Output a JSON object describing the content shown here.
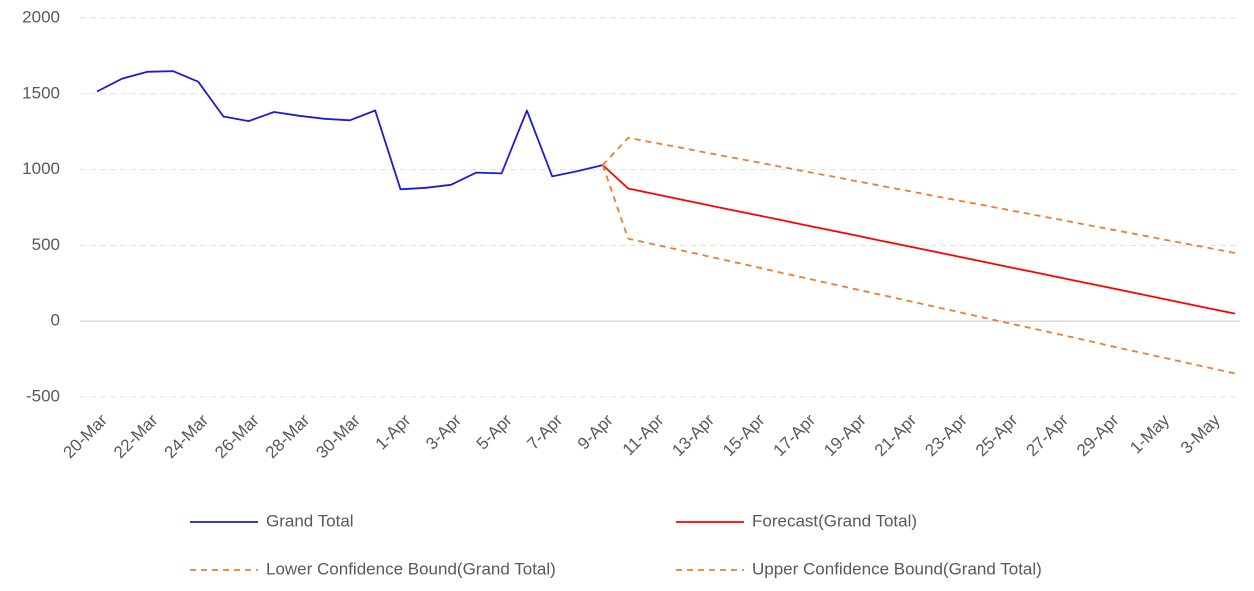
{
  "chart_data": {
    "type": "line",
    "categories": [
      "20-Mar",
      null,
      "22-Mar",
      null,
      "24-Mar",
      null,
      "26-Mar",
      null,
      "28-Mar",
      null,
      "30-Mar",
      null,
      "1-Apr",
      null,
      "3-Apr",
      null,
      "5-Apr",
      null,
      "7-Apr",
      null,
      "9-Apr",
      null,
      "11-Apr",
      null,
      "13-Apr",
      null,
      "15-Apr",
      null,
      "17-Apr",
      null,
      "19-Apr",
      null,
      "21-Apr",
      null,
      "23-Apr",
      null,
      "25-Apr",
      null,
      "27-Apr",
      null,
      "29-Apr",
      null,
      "1-May",
      null,
      "3-May",
      null
    ],
    "series": [
      {
        "name": "Grand Total",
        "color": "#1c1cd6",
        "dashed": false,
        "values": [
          1515,
          1600,
          1645,
          1650,
          1580,
          1350,
          1320,
          1380,
          1355,
          1335,
          1325,
          1390,
          870,
          880,
          900,
          980,
          975,
          1390,
          955,
          990,
          1030,
          null,
          null,
          null,
          null,
          null,
          null,
          null,
          null,
          null,
          null,
          null,
          null,
          null,
          null,
          null,
          null,
          null,
          null,
          null,
          null,
          null,
          null,
          null,
          null,
          null
        ]
      },
      {
        "name": "Forecast(Grand Total)",
        "color": "#ff0000",
        "dashed": false,
        "values": [
          null,
          null,
          null,
          null,
          null,
          null,
          null,
          null,
          null,
          null,
          null,
          null,
          null,
          null,
          null,
          null,
          null,
          null,
          null,
          null,
          1030,
          875,
          841,
          806,
          772,
          737,
          703,
          669,
          634,
          600,
          566,
          531,
          497,
          463,
          428,
          394,
          359,
          325,
          291,
          256,
          222,
          188,
          153,
          119,
          84,
          50
        ]
      },
      {
        "name": "Lower Confidence Bound(Grand Total)",
        "color": "#ed7d31",
        "dashed": true,
        "values": [
          null,
          null,
          null,
          null,
          null,
          null,
          null,
          null,
          null,
          null,
          null,
          null,
          null,
          null,
          null,
          null,
          null,
          null,
          null,
          null,
          1030,
          545,
          508,
          471,
          434,
          397,
          360,
          322,
          285,
          248,
          211,
          174,
          137,
          100,
          63,
          26,
          -11,
          -48,
          -85,
          -122,
          -160,
          -197,
          -234,
          -271,
          -308,
          -345
        ]
      },
      {
        "name": "Upper Confidence Bound(Grand Total)",
        "color": "#ed7d31",
        "dashed": true,
        "values": [
          null,
          null,
          null,
          null,
          null,
          null,
          null,
          null,
          null,
          null,
          null,
          null,
          null,
          null,
          null,
          null,
          null,
          null,
          null,
          null,
          1030,
          1210,
          1178,
          1147,
          1115,
          1083,
          1052,
          1020,
          988,
          957,
          925,
          893,
          862,
          830,
          798,
          767,
          735,
          703,
          672,
          640,
          608,
          577,
          545,
          513,
          482,
          450
        ]
      }
    ],
    "ylim": [
      -500,
      2000
    ],
    "yticks": [
      -500,
      0,
      500,
      1000,
      1500,
      2000
    ],
    "grid": true,
    "legend": "bottom"
  }
}
